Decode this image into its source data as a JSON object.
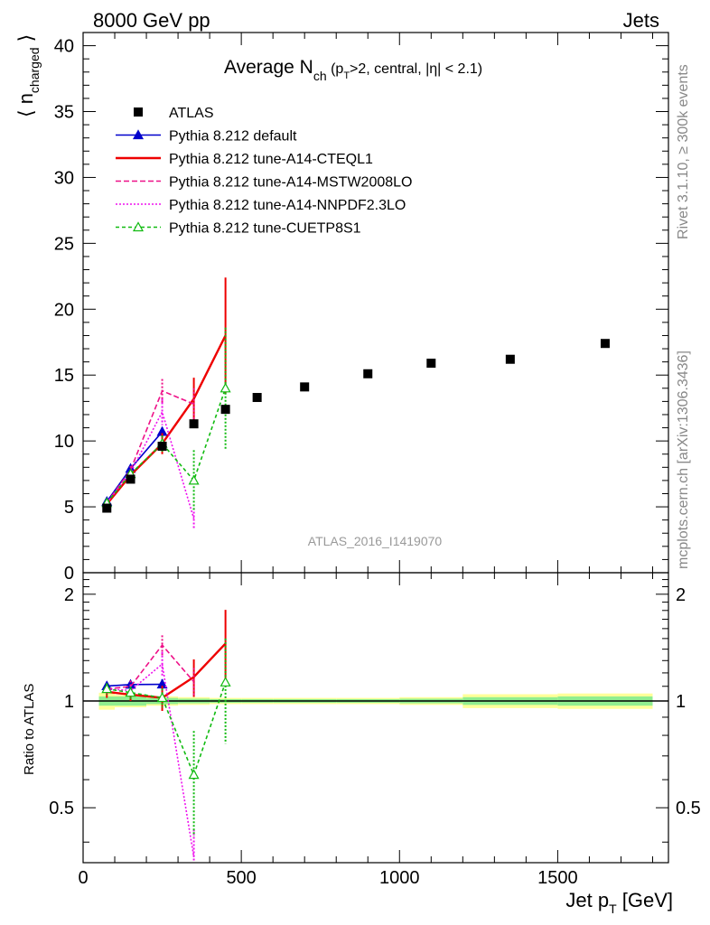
{
  "header": {
    "left": "8000 GeV pp",
    "right": "Jets"
  },
  "side_labels": {
    "rivet": "Rivet 3.1.10, ≥ 300k events",
    "mcplots": "mcplots.cern.ch [arXiv:1306.3436]"
  },
  "watermark": "ATLAS_2016_I1419070",
  "chart_data": {
    "type": "scatter",
    "title": "Average N_ch (p_T>2, central, |η| < 2.1)",
    "title_parts": {
      "main": "Average N",
      "sub_ch": "ch",
      "open": " (p",
      "sub_t": "T",
      "rest": ">2, central, |η| < 2.1)"
    },
    "ylabel": "⟨ n_charged ⟩",
    "ylabel_parts": {
      "open": "⟨ n",
      "sub": "charged",
      "close": " ⟩"
    },
    "ratio_ylabel": "Ratio to ATLAS",
    "xlabel": "Jet p_T [GeV]",
    "xlabel_parts": {
      "main": "Jet p",
      "sub": "T",
      "unit": " [GeV]"
    },
    "xlim": [
      0,
      1850
    ],
    "ylim": [
      0,
      41
    ],
    "ratio_ylim": [
      0.35,
      2.3
    ],
    "xticks": [
      0,
      500,
      1000,
      1500
    ],
    "xtick_labels": [
      "0",
      "500",
      "1000",
      "1500"
    ],
    "yticks": [
      0,
      5,
      10,
      15,
      20,
      25,
      30,
      35,
      40
    ],
    "ytick_labels": [
      "0",
      "5",
      "10",
      "15",
      "20",
      "25",
      "30",
      "35",
      "40"
    ],
    "ratio_yticks": [
      0.5,
      1,
      2
    ],
    "ratio_ytick_labels": [
      "0.5",
      "1",
      "2"
    ],
    "legend_position": "top-left",
    "data": {
      "name": "ATLAS",
      "x": [
        75,
        150,
        250,
        350,
        450,
        550,
        700,
        900,
        1100,
        1350,
        1650
      ],
      "y": [
        4.9,
        7.1,
        9.6,
        11.3,
        12.4,
        13.3,
        14.1,
        15.1,
        15.9,
        16.2,
        17.4
      ],
      "bins": [
        [
          50,
          100
        ],
        [
          100,
          200
        ],
        [
          200,
          300
        ],
        [
          300,
          400
        ],
        [
          400,
          500
        ],
        [
          500,
          600
        ],
        [
          600,
          800
        ],
        [
          800,
          1000
        ],
        [
          1000,
          1200
        ],
        [
          1200,
          1500
        ],
        [
          1500,
          1800
        ]
      ],
      "stat_band": [
        0.03,
        0.03,
        0.02,
        0.015,
        0.012,
        0.012,
        0.012,
        0.012,
        0.015,
        0.025,
        0.03
      ],
      "tot_band": [
        0.055,
        0.04,
        0.03,
        0.025,
        0.02,
        0.02,
        0.02,
        0.02,
        0.025,
        0.045,
        0.05
      ]
    },
    "series": [
      {
        "name": "Pythia 8.212 default",
        "color": "#0000cc",
        "dash": "",
        "marker": "triangle-filled",
        "x": [
          75,
          150,
          250
        ],
        "y": [
          5.4,
          7.9,
          10.7
        ],
        "yerr": [
          0.15,
          0.2,
          0.35
        ]
      },
      {
        "name": "Pythia 8.212 tune-A14-CTEQL1",
        "color": "#ee0000",
        "dash": "",
        "marker": "none",
        "x": [
          75,
          150,
          250,
          350,
          450
        ],
        "y": [
          5.2,
          7.4,
          9.8,
          13.2,
          18.0
        ],
        "yerr": [
          0.2,
          0.3,
          0.8,
          1.6,
          4.4
        ]
      },
      {
        "name": "Pythia 8.212 tune-A14-MSTW2008LO",
        "color": "#ee1188",
        "dash": "6,3",
        "marker": "none",
        "x": [
          75,
          150,
          250,
          350
        ],
        "y": [
          5.3,
          7.8,
          13.8,
          12.8
        ],
        "yerr": [
          0.15,
          0.3,
          0.9,
          1.2
        ]
      },
      {
        "name": "Pythia 8.212 tune-A14-NNPDF2.3LO",
        "color": "#ee11ee",
        "dash": "2,2",
        "marker": "none",
        "x": [
          75,
          150,
          250,
          350
        ],
        "y": [
          5.3,
          7.6,
          12.2,
          4.1
        ],
        "yerr": [
          0.15,
          0.25,
          1.0,
          0.8
        ]
      },
      {
        "name": "Pythia 8.212 tune-CUETP8S1",
        "color": "#11bb11",
        "dash": "4,3",
        "marker": "triangle-open",
        "x": [
          75,
          150,
          250,
          350,
          450
        ],
        "y": [
          5.3,
          7.5,
          9.8,
          7.0,
          14.0
        ],
        "yerr": [
          0.2,
          0.3,
          0.6,
          2.3,
          4.6
        ]
      }
    ]
  }
}
